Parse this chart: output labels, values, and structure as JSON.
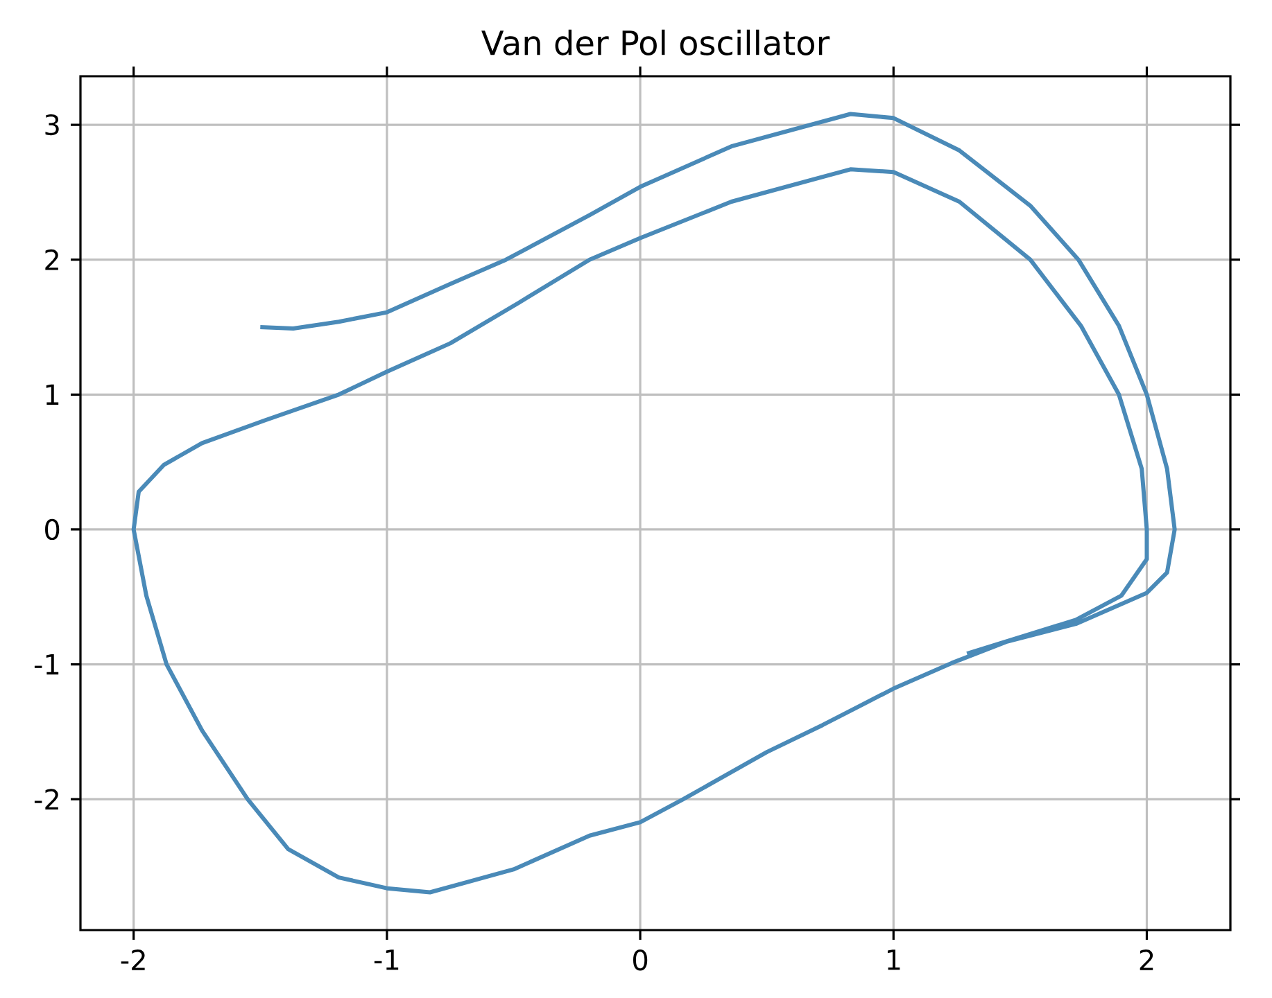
{
  "chart_data": {
    "type": "line",
    "title": "Van der Pol oscillator",
    "x": [
      -1.5,
      -1.37,
      -1.19,
      -1,
      -0.75,
      -0.53,
      -0.2,
      0,
      0.36,
      0.83,
      1.0,
      1.26,
      1.54,
      1.73,
      1.89,
      2.0,
      2.08,
      2.11,
      2.08,
      2.0,
      1.72,
      1.45,
      1.23,
      1.0,
      0.72,
      0.5,
      0.17,
      0,
      -0.2,
      -0.5,
      -0.83,
      -1.0,
      -1.19,
      -1.39,
      -1.55,
      -1.73,
      -1.87,
      -1.95,
      -2.0,
      -1.98,
      -1.88,
      -1.73,
      -1.48,
      -1.19,
      -1.0,
      -0.75,
      -0.48,
      -0.2,
      0,
      0.36,
      0.83,
      1.0,
      1.26,
      1.54,
      1.74,
      1.89,
      1.98,
      2.0,
      2.0,
      1.9,
      1.72,
      1.29
    ],
    "values": [
      1.5,
      1.49,
      1.54,
      1.61,
      1.82,
      2.0,
      2.33,
      2.54,
      2.84,
      3.08,
      3.05,
      2.81,
      2.4,
      2.0,
      1.51,
      1.0,
      0.45,
      0,
      -0.32,
      -0.47,
      -0.7,
      -0.83,
      -0.99,
      -1.18,
      -1.45,
      -1.65,
      -2.0,
      -2.17,
      -2.27,
      -2.52,
      -2.69,
      -2.66,
      -2.58,
      -2.37,
      -2.0,
      -1.49,
      -1.0,
      -0.49,
      0.0,
      0.28,
      0.48,
      0.64,
      0.81,
      1.0,
      1.17,
      1.38,
      1.68,
      2.0,
      2.16,
      2.43,
      2.67,
      2.65,
      2.43,
      2.0,
      1.51,
      1.0,
      0.45,
      0,
      -0.22,
      -0.49,
      -0.67,
      -0.92
    ],
    "color": "#4a8ab8",
    "xlim": [
      -2.21,
      2.33
    ],
    "ylim": [
      -2.97,
      3.36
    ],
    "xticks": [
      -2,
      -1,
      0,
      1,
      2
    ],
    "yticks": [
      -2,
      -1,
      0,
      1,
      2,
      3
    ],
    "grid": true
  }
}
